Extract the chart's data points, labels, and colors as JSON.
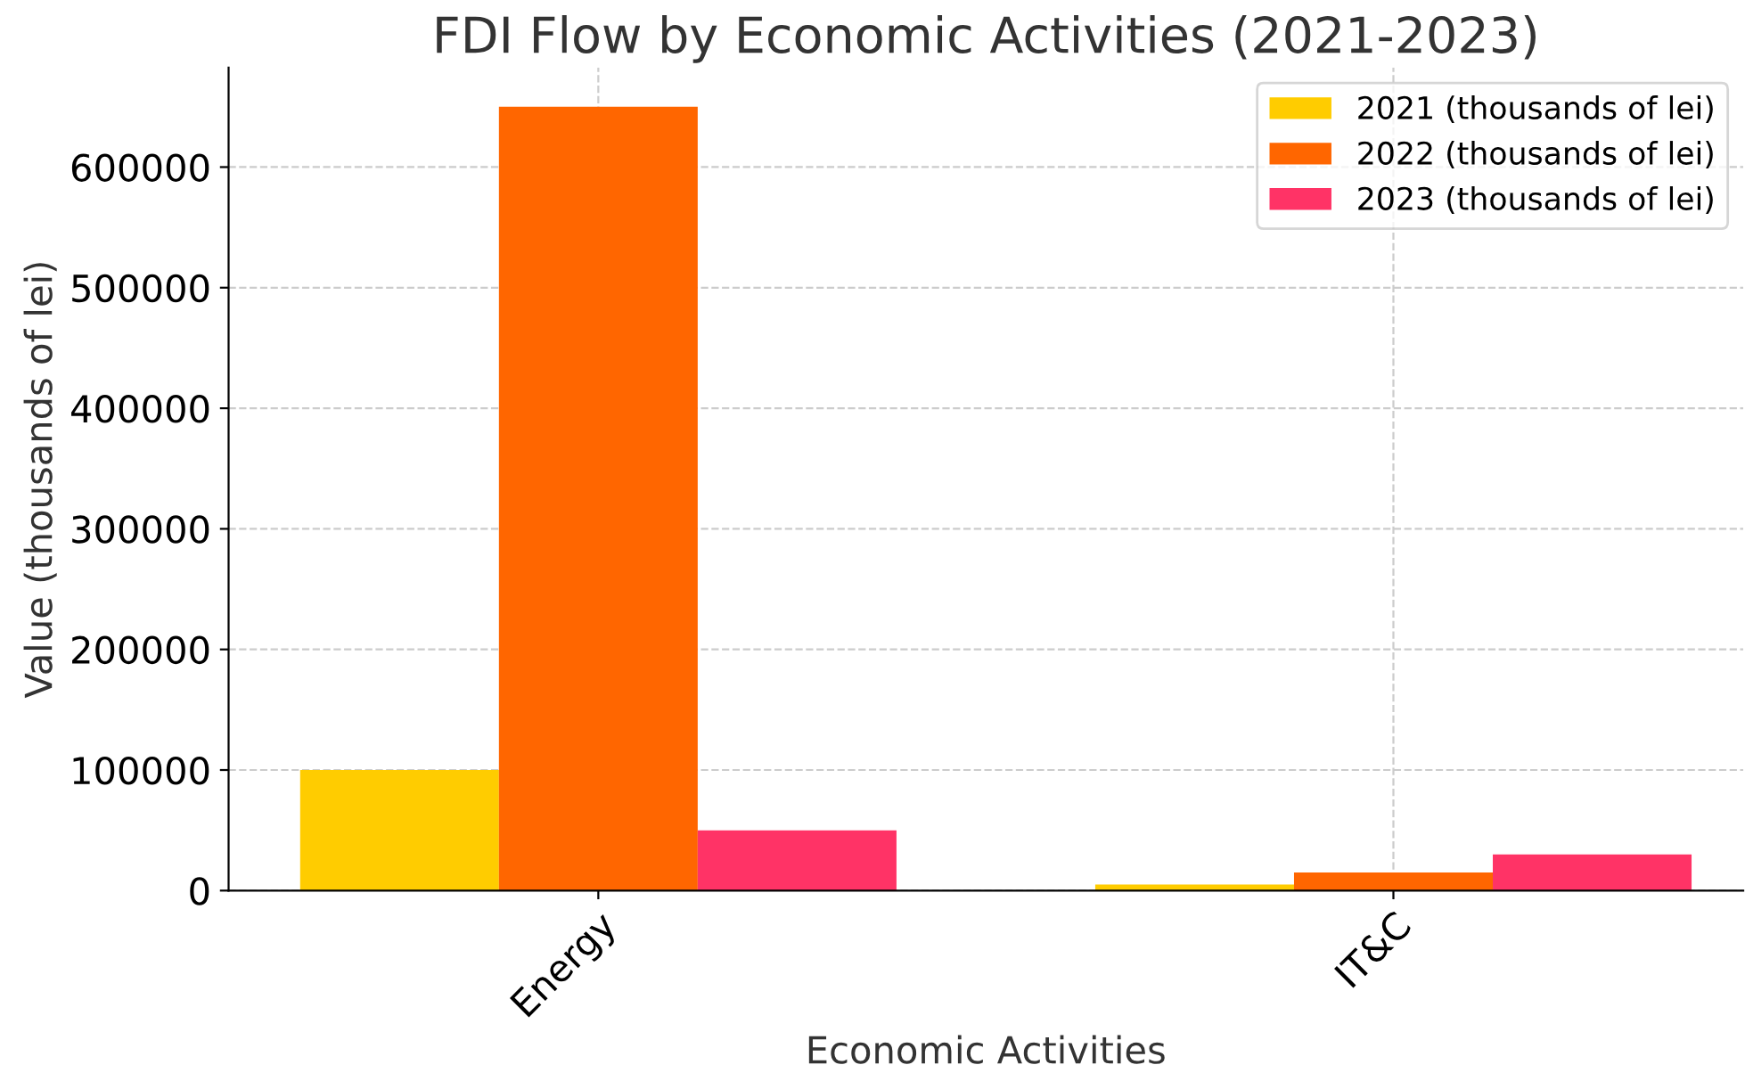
{
  "chart_data": {
    "type": "bar",
    "title": "FDI Flow by Economic Activities (2021-2023)",
    "xlabel": "Economic Activities",
    "ylabel": "Value (thousands of lei)",
    "categories": [
      "Energy",
      "IT&C"
    ],
    "series": [
      {
        "name": "2021 (thousands of lei)",
        "color": "#ffcc00",
        "values": [
          100000,
          5000
        ]
      },
      {
        "name": "2022 (thousands of lei)",
        "color": "#ff6600",
        "values": [
          650000,
          15000
        ]
      },
      {
        "name": "2023 (thousands of lei)",
        "color": "#ff3366",
        "values": [
          50000,
          30000
        ]
      }
    ],
    "ylim": [
      0,
      682500
    ],
    "yticks": [
      0,
      100000,
      200000,
      300000,
      400000,
      500000,
      600000
    ],
    "grid": true,
    "legend": "top right"
  }
}
